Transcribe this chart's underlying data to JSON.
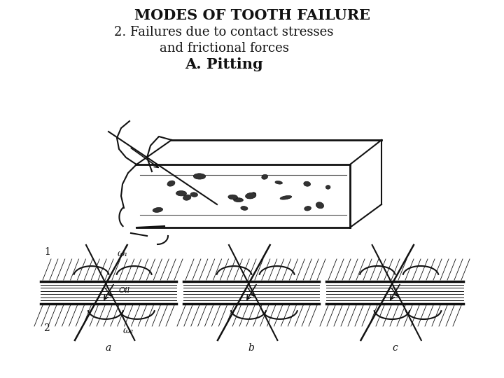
{
  "title": "MODES OF TOOTH FAILURE",
  "line2": "2. Failures due to contact stresses",
  "line3": "and frictional forces",
  "line4": "A. Pitting",
  "bg_color": "#ffffff",
  "text_color": "#111111",
  "title_fontsize": 15,
  "subtitle_fontsize": 13,
  "pitting_fontsize": 15,
  "label_a": "a",
  "label_b": "b",
  "label_c": "c",
  "label_1": "1",
  "label_2": "2",
  "omega1": "ω₁",
  "omega2": "ω₂",
  "oil_label": "Oil"
}
